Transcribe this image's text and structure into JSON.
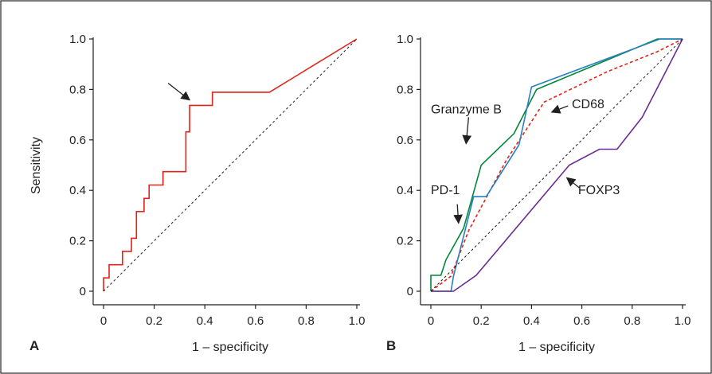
{
  "chart_data": [
    {
      "panel": "A",
      "type": "line",
      "xlabel": "1 – specificity",
      "ylabel": "Sensitivity",
      "xlim": [
        0,
        1
      ],
      "ylim": [
        0,
        1
      ],
      "x_ticks": [
        "0",
        "0.2",
        "0.4",
        "0.6",
        "0.8",
        "1.0"
      ],
      "y_ticks": [
        "0",
        "0.2",
        "0.4",
        "0.6",
        "0.8",
        "1.0"
      ],
      "grid": false,
      "series": [
        {
          "color": "#e2231a",
          "style": "solid",
          "points": [
            [
              0,
              0
            ],
            [
              0,
              0.053
            ],
            [
              0.022,
              0.053
            ],
            [
              0.022,
              0.105
            ],
            [
              0.075,
              0.105
            ],
            [
              0.075,
              0.158
            ],
            [
              0.11,
              0.158
            ],
            [
              0.11,
              0.21
            ],
            [
              0.13,
              0.21
            ],
            [
              0.13,
              0.316
            ],
            [
              0.16,
              0.316
            ],
            [
              0.16,
              0.368
            ],
            [
              0.18,
              0.368
            ],
            [
              0.18,
              0.421
            ],
            [
              0.235,
              0.421
            ],
            [
              0.235,
              0.474
            ],
            [
              0.325,
              0.474
            ],
            [
              0.325,
              0.632
            ],
            [
              0.34,
              0.632
            ],
            [
              0.34,
              0.737
            ],
            [
              0.43,
              0.737
            ],
            [
              0.43,
              0.789
            ],
            [
              0.655,
              0.789
            ],
            [
              1.0,
              1.0
            ]
          ]
        },
        {
          "color": "#231f20",
          "style": "dashed",
          "points": [
            [
              0,
              0
            ],
            [
              1,
              1
            ]
          ]
        }
      ],
      "annotations": [
        {
          "type": "arrow",
          "from": [
            0.255,
            0.825
          ],
          "to": [
            0.34,
            0.758
          ]
        }
      ]
    },
    {
      "panel": "B",
      "type": "line",
      "xlabel": "1 – specificity",
      "ylabel": "",
      "xlim": [
        0,
        1
      ],
      "ylim": [
        0,
        1
      ],
      "x_ticks": [
        "0",
        "0.2",
        "0.4",
        "0.6",
        "0.8",
        "1.0"
      ],
      "y_ticks": [
        "0",
        "0.2",
        "0.4",
        "0.6",
        "0.8",
        "1.0"
      ],
      "grid": false,
      "series": [
        {
          "name": "Granzyme B",
          "color": "#00883a",
          "style": "solid",
          "points": [
            [
              0,
              0
            ],
            [
              0,
              0.063
            ],
            [
              0.04,
              0.063
            ],
            [
              0.06,
              0.125
            ],
            [
              0.13,
              0.25
            ],
            [
              0.2,
              0.5
            ],
            [
              0.33,
              0.625
            ],
            [
              0.42,
              0.8
            ],
            [
              0.9,
              1.0
            ],
            [
              1.0,
              1.0
            ]
          ]
        },
        {
          "name": "CD68",
          "color": "#e2231a",
          "style": "dashed",
          "points": [
            [
              0,
              0
            ],
            [
              0.08,
              0.06
            ],
            [
              0.15,
              0.24
            ],
            [
              0.3,
              0.52
            ],
            [
              0.45,
              0.75
            ],
            [
              0.7,
              0.87
            ],
            [
              0.9,
              0.95
            ],
            [
              1.0,
              1.0
            ]
          ]
        },
        {
          "name": "PD-1",
          "color": "#2a7fc1",
          "style": "solid",
          "points": [
            [
              0,
              0
            ],
            [
              0.08,
              0
            ],
            [
              0.09,
              0.06
            ],
            [
              0.17,
              0.375
            ],
            [
              0.22,
              0.375
            ],
            [
              0.35,
              0.58
            ],
            [
              0.4,
              0.81
            ],
            [
              0.91,
              1.0
            ],
            [
              1.0,
              1.0
            ]
          ]
        },
        {
          "name": "FOXP3",
          "color": "#6a2d91",
          "style": "solid",
          "points": [
            [
              0,
              0
            ],
            [
              0.09,
              0
            ],
            [
              0.18,
              0.063
            ],
            [
              0.55,
              0.5
            ],
            [
              0.67,
              0.563
            ],
            [
              0.74,
              0.563
            ],
            [
              0.84,
              0.69
            ],
            [
              1.0,
              1.0
            ]
          ]
        },
        {
          "color": "#231f20",
          "style": "dashed",
          "points": [
            [
              0,
              0
            ],
            [
              1,
              1
            ]
          ]
        }
      ],
      "annotations": [
        {
          "type": "label",
          "text": "Granzyme B",
          "pos": [
            0.0,
            0.705
          ]
        },
        {
          "type": "arrow",
          "from": [
            0.15,
            0.69
          ],
          "to": [
            0.14,
            0.585
          ]
        },
        {
          "type": "label",
          "text": "CD68",
          "pos": [
            0.56,
            0.725
          ]
        },
        {
          "type": "arrow",
          "from": [
            0.545,
            0.735
          ],
          "to": [
            0.48,
            0.71
          ]
        },
        {
          "type": "label",
          "text": "PD-1",
          "pos": [
            0.0,
            0.385
          ]
        },
        {
          "type": "arrow",
          "from": [
            0.105,
            0.345
          ],
          "to": [
            0.11,
            0.27
          ]
        },
        {
          "type": "label",
          "text": "FOXP3",
          "pos": [
            0.585,
            0.385
          ]
        },
        {
          "type": "arrow",
          "from": [
            0.59,
            0.41
          ],
          "to": [
            0.54,
            0.45
          ]
        }
      ]
    }
  ]
}
